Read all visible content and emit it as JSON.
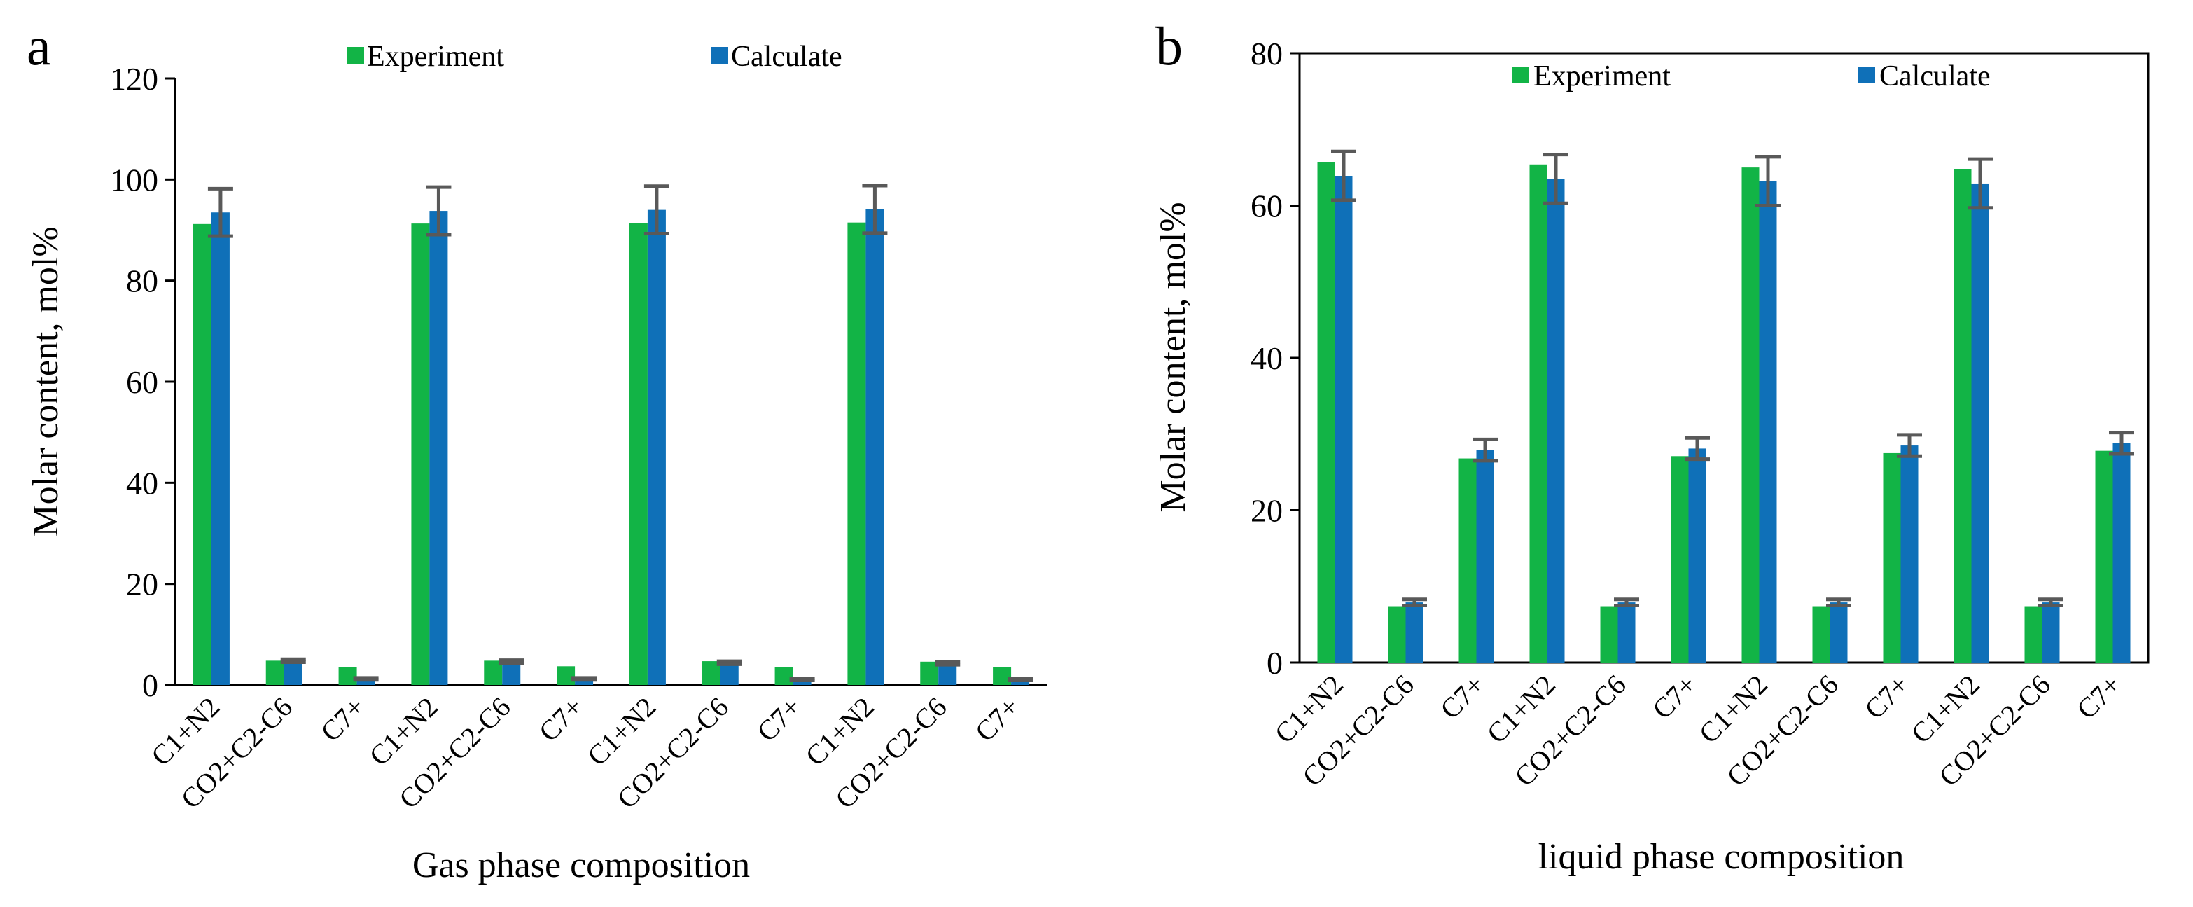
{
  "series_colors": {
    "experiment": "#12b446",
    "calculate": "#0f70b8",
    "error": "#595959"
  },
  "chart_data": [
    {
      "type": "bar",
      "panel_label": "a",
      "title": "",
      "xlabel": "Gas phase composition",
      "ylabel": "Molar content,   mol%",
      "ylim": [
        0,
        120
      ],
      "yticks": [
        "0",
        "20",
        "40",
        "60",
        "80",
        "100",
        "120"
      ],
      "categories": [
        "C1+N2",
        "CO2+C2-C6",
        "C7+",
        "C1+N2",
        "CO2+C2-C6",
        "C7+",
        "C1+N2",
        "CO2+C2-C6",
        "C7+",
        "C1+N2",
        "CO2+C2-C6",
        "C7+"
      ],
      "series": [
        {
          "name": "Experiment",
          "values": [
            91.2,
            4.8,
            3.6,
            91.3,
            4.8,
            3.7,
            91.4,
            4.7,
            3.6,
            91.5,
            4.6,
            3.5
          ]
        },
        {
          "name": "Calculate",
          "values": [
            93.5,
            4.8,
            1.2,
            93.8,
            4.6,
            1.2,
            94.0,
            4.4,
            1.1,
            94.1,
            4.3,
            1.1
          ],
          "error": [
            4.7,
            0.3,
            0.2,
            4.7,
            0.3,
            0.2,
            4.7,
            0.3,
            0.2,
            4.7,
            0.3,
            0.2
          ]
        }
      ],
      "legend_position": "top-center",
      "grid": false
    },
    {
      "type": "bar",
      "panel_label": "b",
      "title": "",
      "xlabel": "liquid phase composition",
      "ylabel": "Molar content,   mol%",
      "ylim": [
        0,
        80
      ],
      "yticks": [
        "0",
        "20",
        "40",
        "60",
        "80"
      ],
      "categories": [
        "C1+N2",
        "CO2+C2-C6",
        "C7+",
        "C1+N2",
        "CO2+C2-C6",
        "C7+",
        "C1+N2",
        "CO2+C2-C6",
        "C7+",
        "C1+N2",
        "CO2+C2-C6",
        "C7+"
      ],
      "series": [
        {
          "name": "Experiment",
          "values": [
            65.7,
            7.4,
            26.8,
            65.4,
            7.4,
            27.1,
            65.0,
            7.4,
            27.5,
            64.8,
            7.4,
            27.8
          ]
        },
        {
          "name": "Calculate",
          "values": [
            63.9,
            7.9,
            27.9,
            63.5,
            7.9,
            28.1,
            63.2,
            7.9,
            28.5,
            62.9,
            7.9,
            28.8
          ],
          "error": [
            3.2,
            0.4,
            1.4,
            3.2,
            0.4,
            1.4,
            3.2,
            0.4,
            1.4,
            3.2,
            0.4,
            1.4
          ]
        }
      ],
      "legend_position": "top-center",
      "grid": false
    }
  ]
}
